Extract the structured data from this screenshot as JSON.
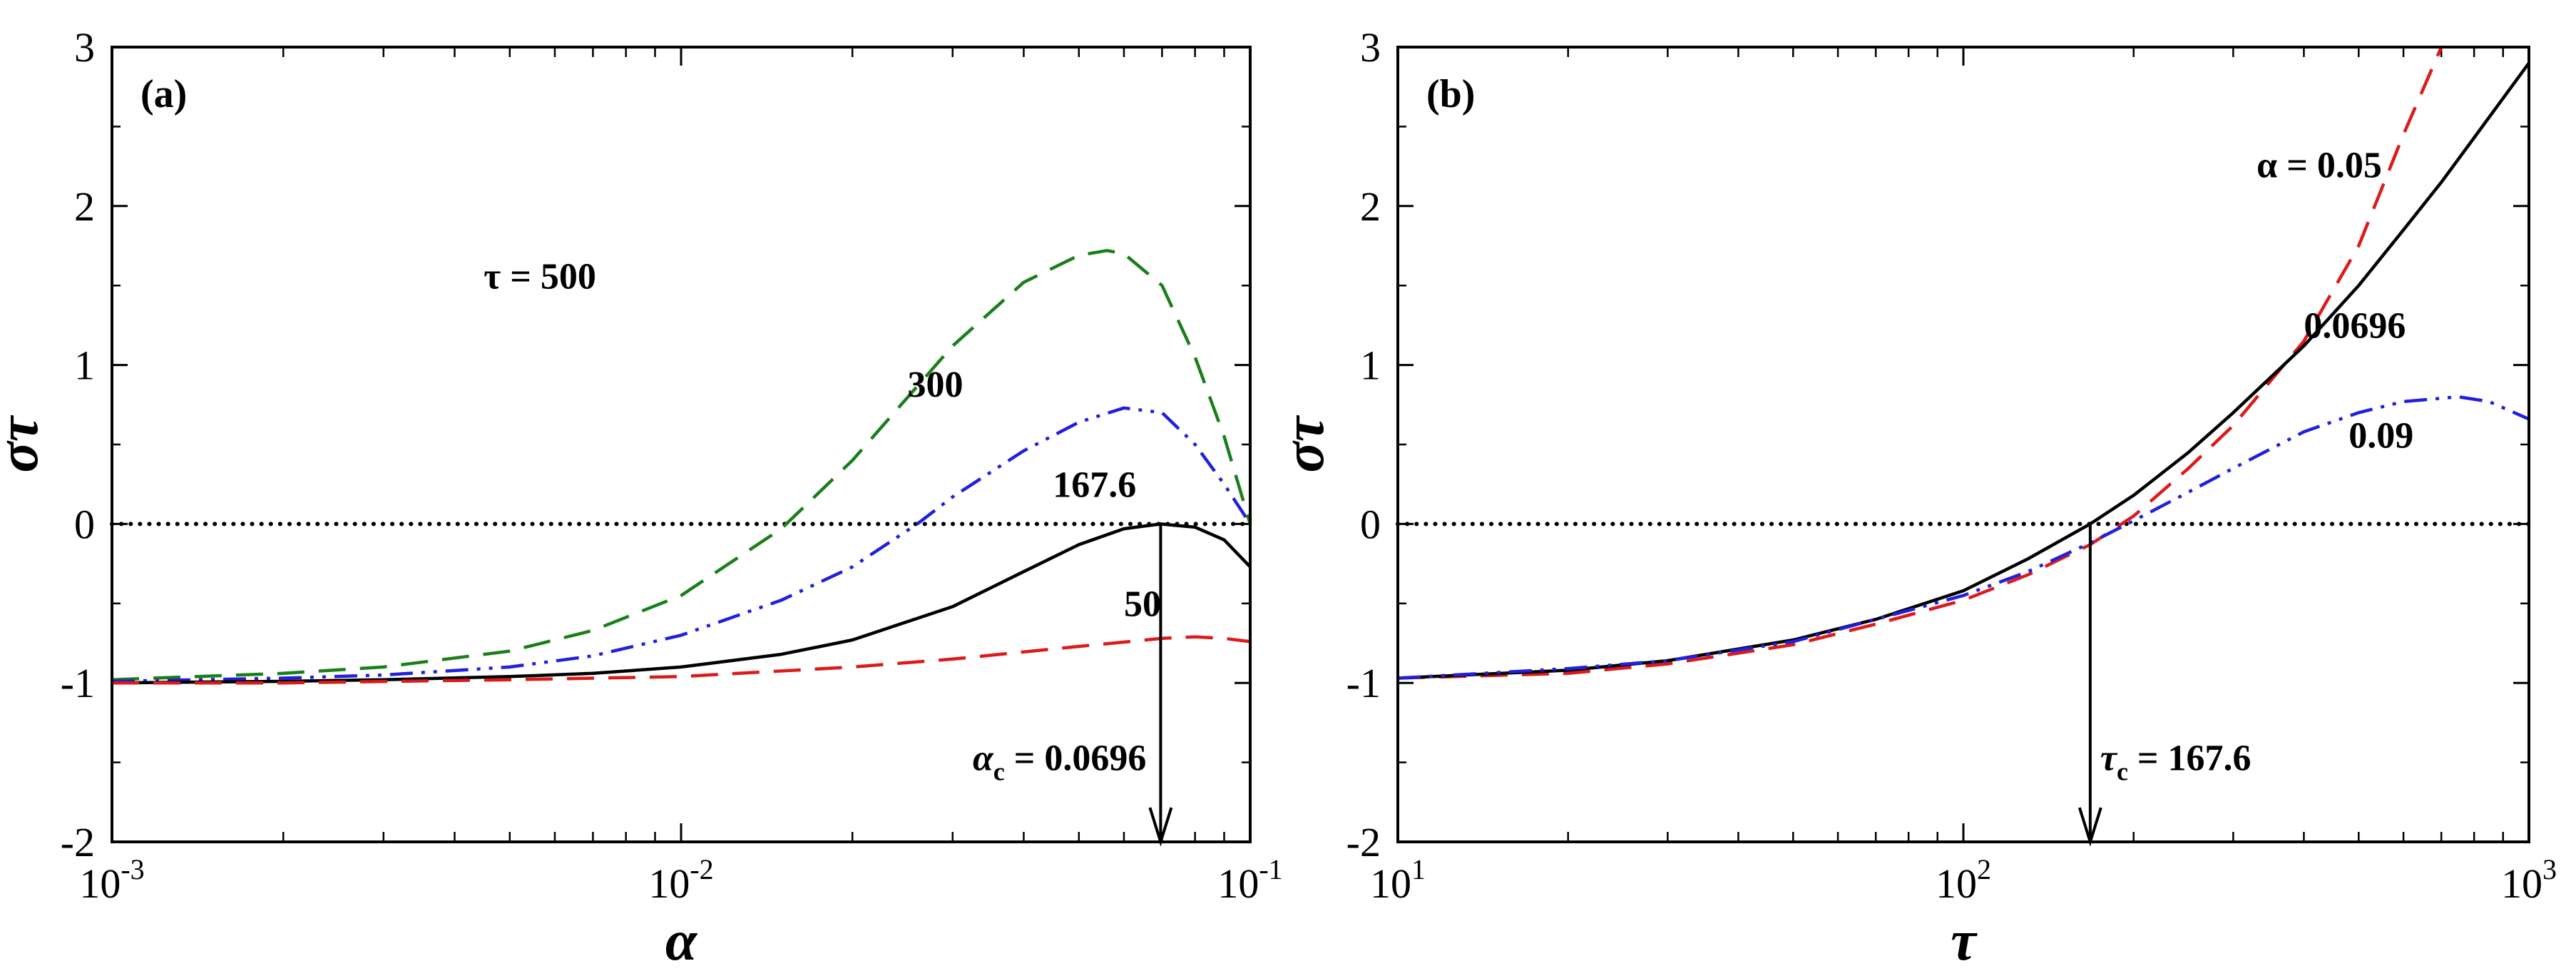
{
  "chart_data": [
    {
      "type": "line",
      "panel_label": "(a)",
      "xlabel": "α",
      "ylabel": "στ",
      "xscale": "log",
      "xlim": [
        0.001,
        0.1
      ],
      "ylim": [
        -2,
        3
      ],
      "x_tick_labels": [
        {
          "base": "10",
          "exp": "-3"
        },
        {
          "base": "10",
          "exp": "-2"
        },
        {
          "base": "10",
          "exp": "-1"
        }
      ],
      "y_tick_labels": [
        "-2",
        "-1",
        "0",
        "1",
        "2",
        "3"
      ],
      "series": [
        {
          "name": "τ = 500",
          "color": "#1a7f1a",
          "dash": "long-dash",
          "x": [
            0.001,
            0.002,
            0.003,
            0.005,
            0.007,
            0.01,
            0.015,
            0.02,
            0.03,
            0.04,
            0.05,
            0.056,
            0.06,
            0.07,
            0.08,
            0.09,
            0.1
          ],
          "y": [
            -0.98,
            -0.94,
            -0.9,
            -0.8,
            -0.67,
            -0.45,
            -0.03,
            0.4,
            1.12,
            1.52,
            1.69,
            1.72,
            1.7,
            1.5,
            1.05,
            0.55,
            0.0
          ]
        },
        {
          "name": "300",
          "color": "#2020dd",
          "dash": "dash-dot-dot",
          "x": [
            0.001,
            0.002,
            0.003,
            0.005,
            0.007,
            0.01,
            0.015,
            0.02,
            0.026,
            0.03,
            0.04,
            0.05,
            0.06,
            0.07,
            0.08,
            0.09,
            0.1
          ],
          "y": [
            -0.99,
            -0.97,
            -0.95,
            -0.9,
            -0.83,
            -0.7,
            -0.48,
            -0.27,
            0.0,
            0.17,
            0.46,
            0.64,
            0.73,
            0.7,
            0.5,
            0.25,
            0.0
          ]
        },
        {
          "name": "167.6",
          "color": "#000000",
          "dash": "solid",
          "x": [
            0.001,
            0.002,
            0.003,
            0.005,
            0.007,
            0.01,
            0.015,
            0.02,
            0.03,
            0.04,
            0.05,
            0.06,
            0.0696,
            0.08,
            0.09,
            0.1
          ],
          "y": [
            -1.0,
            -0.99,
            -0.98,
            -0.96,
            -0.94,
            -0.9,
            -0.82,
            -0.73,
            -0.52,
            -0.3,
            -0.13,
            -0.03,
            0.0,
            -0.02,
            -0.1,
            -0.27
          ]
        },
        {
          "name": "50",
          "color": "#dd1a1a",
          "dash": "long-dash",
          "x": [
            0.001,
            0.002,
            0.005,
            0.01,
            0.02,
            0.03,
            0.05,
            0.07,
            0.08,
            0.09,
            0.1
          ],
          "y": [
            -1.0,
            -1.0,
            -0.98,
            -0.96,
            -0.9,
            -0.85,
            -0.77,
            -0.72,
            -0.71,
            -0.72,
            -0.74
          ]
        }
      ],
      "reference_line": {
        "y": 0,
        "style": "dotted"
      },
      "annotations": [
        {
          "text": "τ = 500",
          "x": 0.0045,
          "y": 1.48
        },
        {
          "text": "300",
          "x": 0.025,
          "y": 0.8
        },
        {
          "text": "167.6",
          "x": 0.045,
          "y": 0.17
        },
        {
          "text": "50",
          "x": 0.06,
          "y": -0.58
        }
      ],
      "critical": {
        "label": "α",
        "subscript": "c",
        "value_text": " = 0.0696",
        "value": 0.0696
      }
    },
    {
      "type": "line",
      "panel_label": "(b)",
      "xlabel": "τ",
      "ylabel": "στ",
      "xscale": "log",
      "xlim": [
        10,
        1000
      ],
      "ylim": [
        -2,
        3
      ],
      "x_tick_labels": [
        {
          "base": "10",
          "exp": "1"
        },
        {
          "base": "10",
          "exp": "2"
        },
        {
          "base": "10",
          "exp": "3"
        }
      ],
      "y_tick_labels": [
        "-2",
        "-1",
        "0",
        "1",
        "2",
        "3"
      ],
      "series": [
        {
          "name": "α = 0.05",
          "color": "#dd1a1a",
          "dash": "long-dash",
          "x": [
            10,
            20,
            30,
            50,
            70,
            100,
            130,
            167.6,
            200,
            250,
            300,
            400,
            500,
            600,
            700
          ],
          "y": [
            -0.97,
            -0.94,
            -0.88,
            -0.76,
            -0.63,
            -0.48,
            -0.32,
            -0.13,
            0.05,
            0.35,
            0.62,
            1.15,
            1.75,
            2.45,
            3.0
          ]
        },
        {
          "name": "0.0696",
          "color": "#000000",
          "dash": "solid",
          "x": [
            10,
            20,
            30,
            50,
            70,
            100,
            130,
            167.6,
            200,
            250,
            300,
            400,
            500,
            600,
            700,
            800,
            1000
          ],
          "y": [
            -0.97,
            -0.92,
            -0.86,
            -0.73,
            -0.6,
            -0.42,
            -0.22,
            0.0,
            0.18,
            0.45,
            0.7,
            1.12,
            1.5,
            1.85,
            2.15,
            2.43,
            2.9
          ]
        },
        {
          "name": "0.09",
          "color": "#2020dd",
          "dash": "dash-dot-dot",
          "x": [
            10,
            20,
            30,
            50,
            70,
            100,
            130,
            167.6,
            200,
            250,
            300,
            400,
            500,
            600,
            750,
            850,
            1000
          ],
          "y": [
            -0.97,
            -0.91,
            -0.86,
            -0.74,
            -0.6,
            -0.45,
            -0.3,
            -0.12,
            0.02,
            0.2,
            0.35,
            0.58,
            0.7,
            0.77,
            0.8,
            0.77,
            0.66
          ]
        }
      ],
      "reference_line": {
        "y": 0,
        "style": "dotted"
      },
      "annotations": [
        {
          "text": "α = 0.05",
          "x": 330,
          "y": 2.18
        },
        {
          "text": "0.0696",
          "x": 400,
          "y": 1.17
        },
        {
          "text": "0.09",
          "x": 480,
          "y": 0.48
        }
      ],
      "critical": {
        "label": "τ",
        "subscript": "c",
        "value_text": " = 167.6",
        "value": 167.6
      }
    }
  ]
}
